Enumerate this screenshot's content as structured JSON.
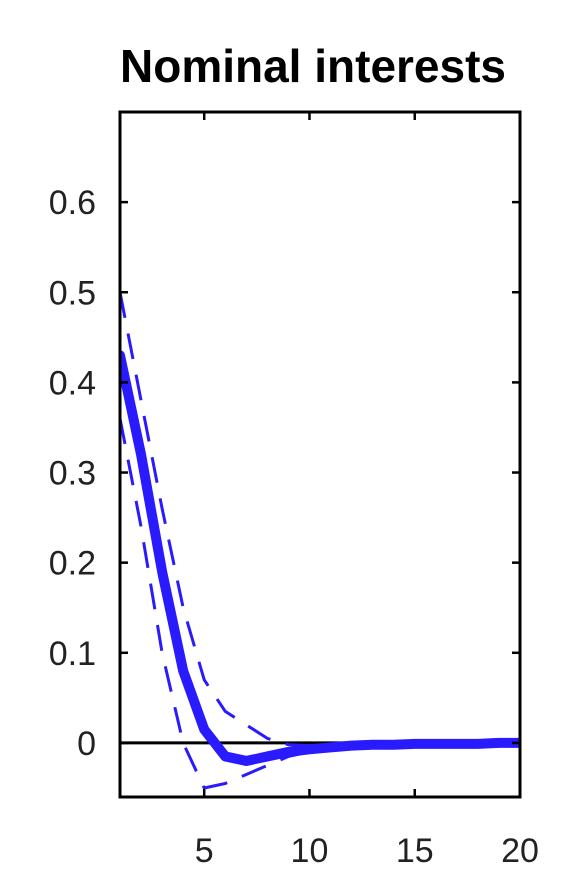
{
  "chart_data": {
    "type": "line",
    "title": "Nominal interests",
    "xlabel": "",
    "ylabel": "",
    "xlim": [
      1,
      20
    ],
    "ylim": [
      -0.06,
      0.7
    ],
    "x_ticks": [
      5,
      10,
      15,
      20
    ],
    "y_ticks": [
      0,
      0.1,
      0.2,
      0.3,
      0.4,
      0.5,
      0.6
    ],
    "x_tick_labels": [
      "5",
      "10",
      "15",
      "20"
    ],
    "y_tick_labels": [
      "0",
      "0.1",
      "0.2",
      "0.3",
      "0.4",
      "0.5",
      "0.6"
    ],
    "grid": false,
    "legend": "none",
    "zero_line": true,
    "colors": {
      "series": "#2a1bff",
      "axis": "#000000",
      "zero_line": "#000000"
    },
    "x": [
      1,
      2,
      3,
      4,
      5,
      6,
      7,
      8,
      9,
      10,
      11,
      12,
      13,
      14,
      15,
      16,
      17,
      18,
      19,
      20
    ],
    "series": [
      {
        "role": "median",
        "style": "solid-thick",
        "values": [
          0.43,
          0.32,
          0.19,
          0.08,
          0.015,
          -0.015,
          -0.02,
          -0.015,
          -0.01,
          -0.007,
          -0.005,
          -0.003,
          -0.002,
          -0.002,
          -0.001,
          -0.001,
          -0.001,
          -0.001,
          0.0,
          0.0
        ]
      },
      {
        "role": "upper-bound",
        "style": "dashed",
        "values": [
          0.5,
          0.38,
          0.26,
          0.15,
          0.07,
          0.035,
          0.02,
          0.005,
          -0.002,
          -0.003,
          -0.002,
          -0.001,
          -0.001,
          0.0,
          0.0,
          0.0,
          0.0,
          0.0,
          0.0,
          0.0
        ]
      },
      {
        "role": "lower-bound",
        "style": "dashed",
        "values": [
          0.36,
          0.24,
          0.1,
          0.0,
          -0.05,
          -0.045,
          -0.035,
          -0.025,
          -0.015,
          -0.01,
          -0.007,
          -0.005,
          -0.003,
          -0.002,
          -0.002,
          -0.001,
          -0.001,
          -0.001,
          0.0,
          0.0
        ]
      }
    ]
  }
}
